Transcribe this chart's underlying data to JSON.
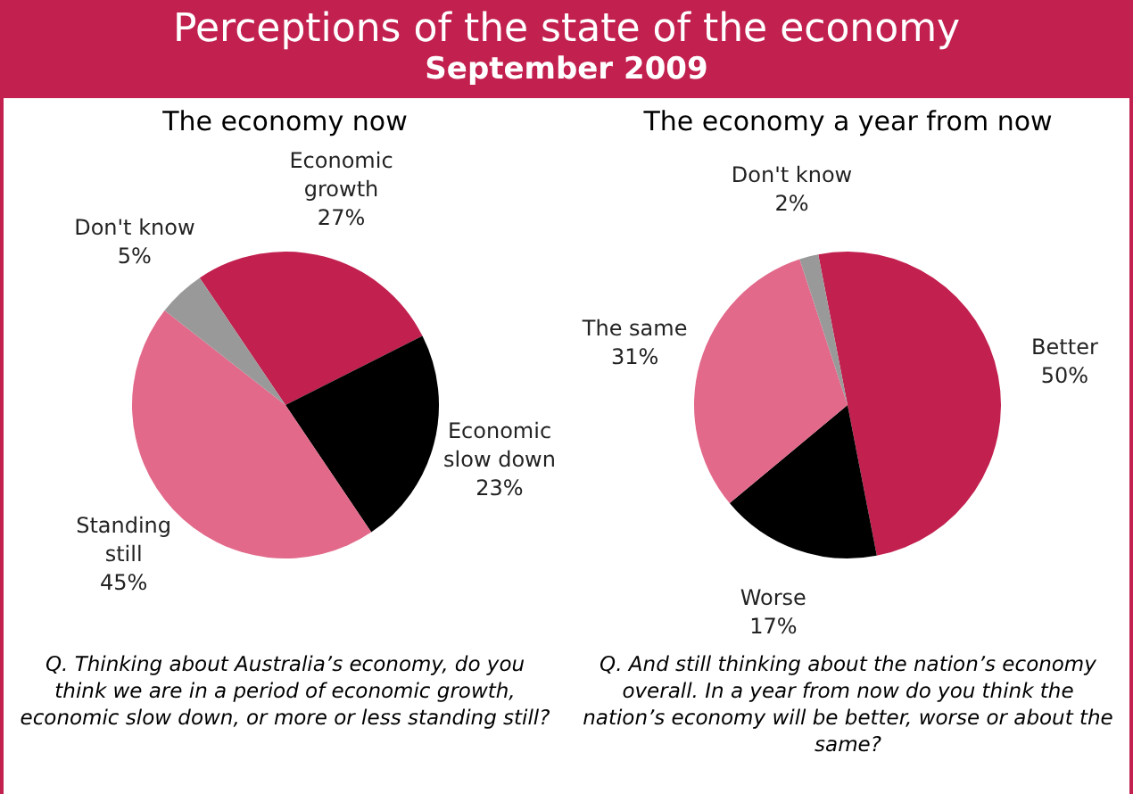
{
  "chart_data": [
    {
      "type": "other",
      "title": "Perceptions of the state of the economy",
      "subtitle": "September 2009"
    },
    {
      "type": "pie",
      "title": "The economy now",
      "categories": [
        "Economic growth",
        "Economic slow down",
        "Standing still",
        "Don't know"
      ],
      "values": [
        27,
        23,
        45,
        5
      ],
      "value_labels": [
        "27%",
        "23%",
        "45%",
        "5%"
      ],
      "colors": [
        "#c2204f",
        "#000000",
        "#e2698a",
        "#999999"
      ],
      "legend": false,
      "annotations": [
        "Q. Thinking about Australia’s economy, do you think we are in a period of economic growth, economic slow down, or more or less standing still?"
      ]
    },
    {
      "type": "pie",
      "title": "The economy a year from now",
      "categories": [
        "Better",
        "Worse",
        "The same",
        "Don't know"
      ],
      "values": [
        50,
        17,
        31,
        2
      ],
      "value_labels": [
        "50%",
        "17%",
        "31%",
        "2%"
      ],
      "colors": [
        "#c2204f",
        "#000000",
        "#e2698a",
        "#999999"
      ],
      "legend": false,
      "annotations": [
        "Q. And still thinking about the nation’s economy overall.  In a year from now do you think the nation’s economy will be better, worse or about the same?"
      ]
    }
  ]
}
